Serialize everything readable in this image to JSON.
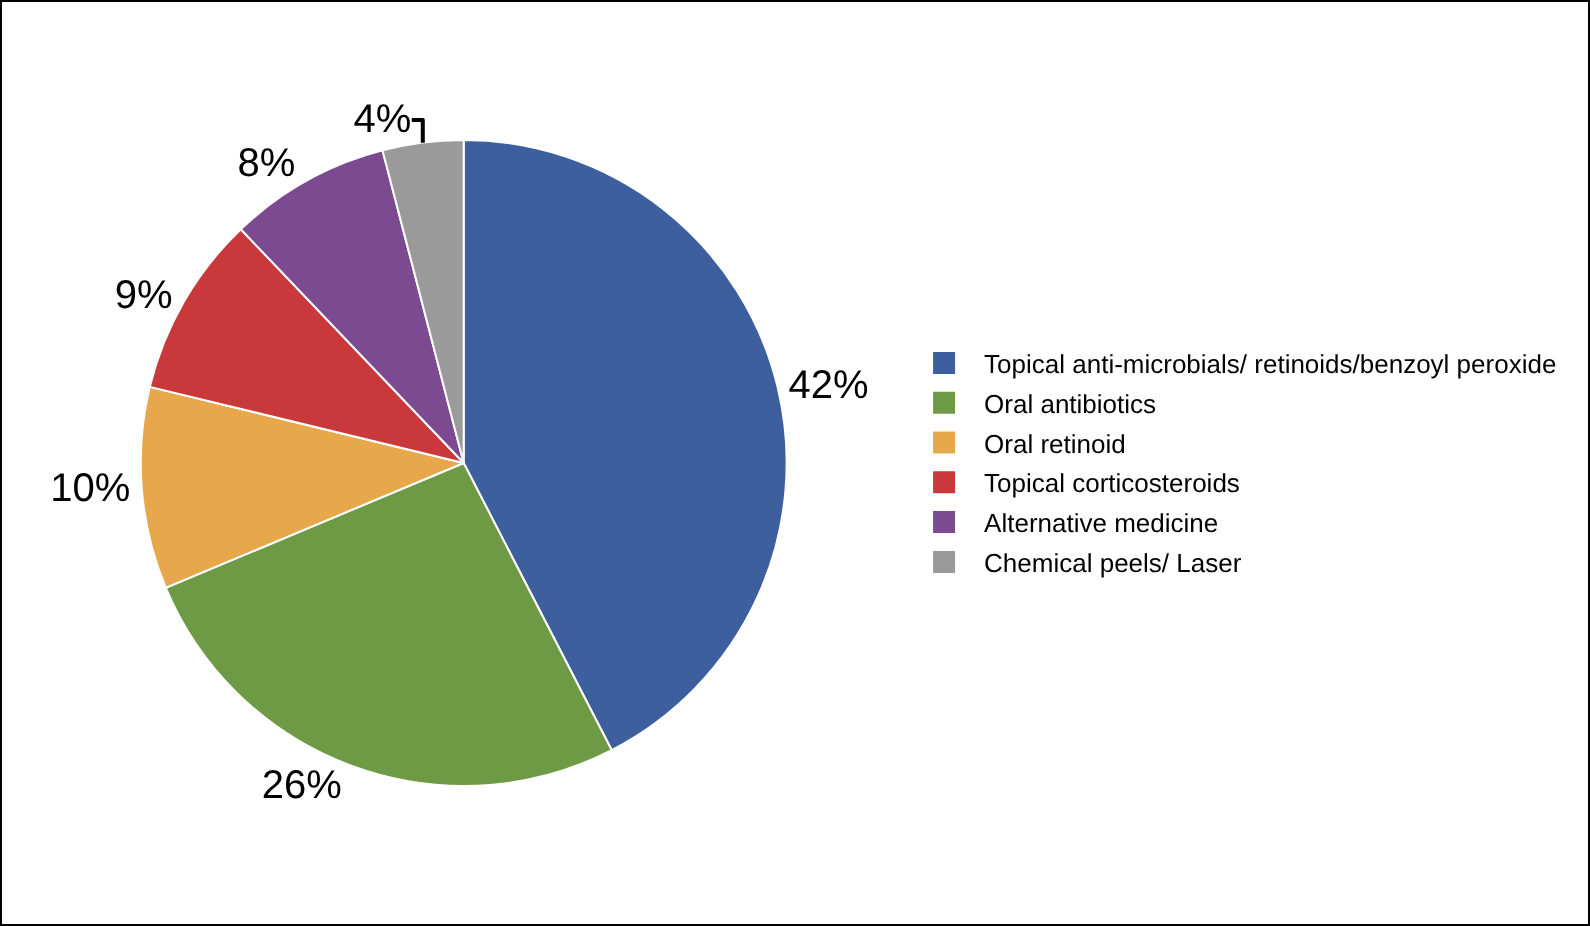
{
  "chart_data": {
    "type": "pie",
    "categories": [
      "Topical anti-microbials/ retinoids/benzoyl peroxide",
      "Oral antibiotics",
      "Oral retinoid",
      "Topical corticosteroids",
      "Alternative medicine",
      "Chemical peels/ Laser"
    ],
    "values": [
      42,
      26,
      10,
      9,
      8,
      4
    ],
    "value_labels": [
      "42%",
      "26%",
      "10%",
      "9%",
      "8%",
      "4%"
    ],
    "colors": [
      "#3d5f9e",
      "#6f9a45",
      "#e6a84a",
      "#c9383a",
      "#7b4a90",
      "#9a9a9a"
    ],
    "legend": "right"
  }
}
